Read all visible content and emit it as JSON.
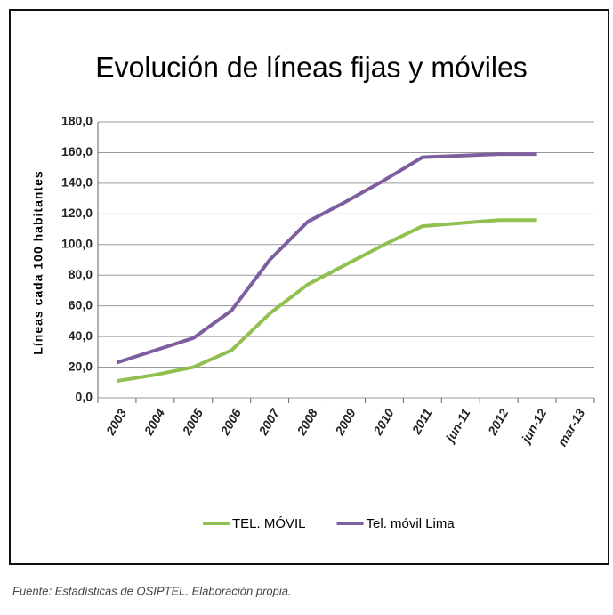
{
  "chart_data": {
    "type": "line",
    "title": "Evolución de líneas fijas y móviles",
    "y_label": "Líneas cada 100 habitantes",
    "source": "Fuente: Estadísticas de OSIPTEL. Elaboración propia.",
    "categories": [
      "2003",
      "2004",
      "2005",
      "2006",
      "2007",
      "2008",
      "2009",
      "2010",
      "2011",
      "jun-11",
      "2012",
      "jun-12",
      "mar-13"
    ],
    "series": [
      {
        "name": "TEL. MÓVIL",
        "color": "#92c050",
        "values": [
          11,
          15,
          20,
          31,
          55,
          74,
          87,
          100,
          112,
          114,
          116,
          116,
          null
        ]
      },
      {
        "name": "Tel. móvil Lima",
        "color": "#7d5fa0",
        "values": [
          23,
          31,
          39,
          57,
          90,
          115,
          128,
          142,
          157,
          158,
          159,
          159,
          null
        ]
      }
    ],
    "ylim": [
      0,
      180
    ],
    "yticks": [
      {
        "value": 0,
        "label": "0,0"
      },
      {
        "value": 20,
        "label": "20,0"
      },
      {
        "value": 40,
        "label": "40,0"
      },
      {
        "value": 60,
        "label": "60,0"
      },
      {
        "value": 80,
        "label": "80,0"
      },
      {
        "value": 100,
        "label": "100,0"
      },
      {
        "value": 120,
        "label": "120,0"
      },
      {
        "value": 140,
        "label": "140,0"
      },
      {
        "value": 160,
        "label": "160,0"
      },
      {
        "value": 180,
        "label": "180,0"
      }
    ],
    "grid": true,
    "legend": "bottom"
  }
}
